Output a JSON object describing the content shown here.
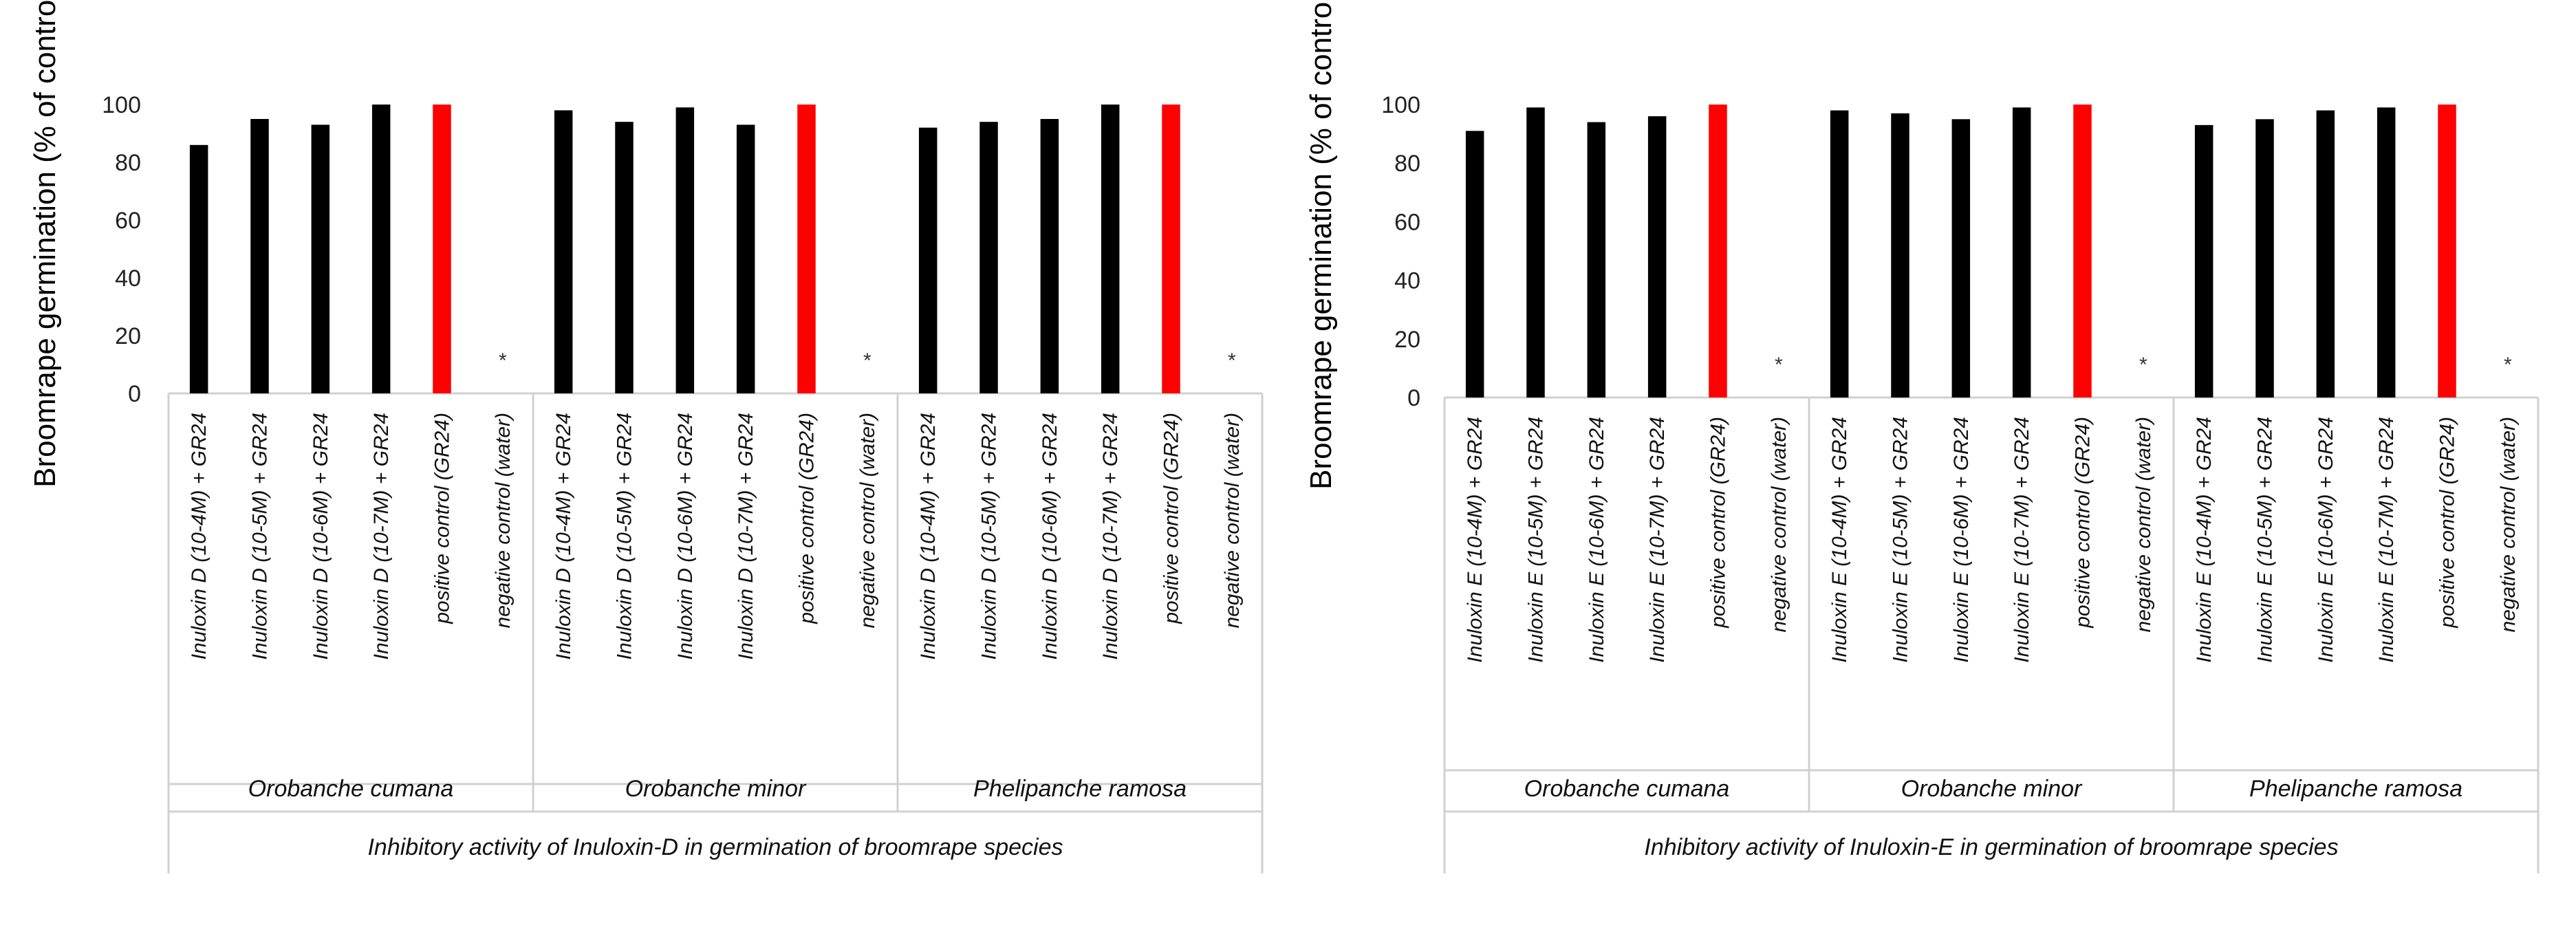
{
  "chart_data": [
    {
      "type": "bar",
      "ylabel": "Broomrape germination (% of control)",
      "yticks": [
        0,
        20,
        40,
        60,
        80,
        100
      ],
      "ylim": [
        0,
        100
      ],
      "caption": "Inhibitory activity of Inuloxin-D in germination of broomrape species",
      "groups": [
        {
          "name": "Orobanche cumana",
          "categories": [
            "Inuloxin D (10-4M) + GR24",
            "Inuloxin D (10-5M) + GR24",
            "Inuloxin D (10-6M) + GR24",
            "Inuloxin D (10-7M) + GR24",
            "positive control (GR24)",
            "negative control (water)"
          ],
          "values": [
            86,
            95,
            93,
            100,
            100,
            0
          ],
          "labels": [
            "",
            "",
            "",
            "",
            "",
            "*"
          ]
        },
        {
          "name": "Orobanche minor",
          "categories": [
            "Inuloxin D (10-4M) + GR24",
            "Inuloxin D (10-5M) + GR24",
            "Inuloxin D (10-6M) + GR24",
            "Inuloxin D (10-7M) + GR24",
            "positive control (GR24)",
            "negative control (water)"
          ],
          "values": [
            98,
            94,
            99,
            93,
            100,
            0
          ],
          "labels": [
            "",
            "",
            "",
            "",
            "",
            "*"
          ]
        },
        {
          "name": "Phelipanche ramosa",
          "categories": [
            "Inuloxin D (10-4M) + GR24",
            "Inuloxin D (10-5M) + GR24",
            "Inuloxin D (10-6M) + GR24",
            "Inuloxin D (10-7M) + GR24",
            "positive control (GR24)",
            "negative control (water)"
          ],
          "values": [
            92,
            94,
            95,
            100,
            100,
            0
          ],
          "labels": [
            "",
            "",
            "",
            "",
            "",
            "*"
          ]
        }
      ],
      "colors": {
        "treatment": "#000000",
        "positive_control": "#ff0000"
      }
    },
    {
      "type": "bar",
      "ylabel": "Broomrape germination (% of control)",
      "yticks": [
        0,
        20,
        40,
        60,
        80,
        100
      ],
      "ylim": [
        0,
        100
      ],
      "caption": "Inhibitory activity of Inuloxin-E in germination of broomrape species",
      "groups": [
        {
          "name": "Orobanche cumana",
          "categories": [
            "Inuloxin E (10-4M) + GR24",
            "Inuloxin E (10-5M) + GR24",
            "Inuloxin E (10-6M) + GR24",
            "Inuloxin E (10-7M) + GR24",
            "positive control (GR24)",
            "negative control (water)"
          ],
          "values": [
            91,
            99,
            94,
            96,
            100,
            0
          ],
          "labels": [
            "",
            "",
            "",
            "",
            "",
            "*"
          ]
        },
        {
          "name": "Orobanche minor",
          "categories": [
            "Inuloxin E (10-4M) + GR24",
            "Inuloxin E (10-5M) + GR24",
            "Inuloxin E (10-6M) + GR24",
            "Inuloxin E (10-7M) + GR24",
            "positive control (GR24)",
            "negative control (water)"
          ],
          "values": [
            98,
            97,
            95,
            99,
            100,
            0
          ],
          "labels": [
            "",
            "",
            "",
            "",
            "",
            "*"
          ]
        },
        {
          "name": "Phelipanche ramosa",
          "categories": [
            "Inuloxin E (10-4M) + GR24",
            "Inuloxin E (10-5M) + GR24",
            "Inuloxin E (10-6M) + GR24",
            "Inuloxin E (10-7M) + GR24",
            "positive control (GR24)",
            "negative control (water)"
          ],
          "values": [
            93,
            95,
            98,
            99,
            100,
            0
          ],
          "labels": [
            "",
            "",
            "",
            "",
            "",
            "*"
          ]
        }
      ],
      "colors": {
        "treatment": "#000000",
        "positive_control": "#ff0000"
      }
    }
  ]
}
